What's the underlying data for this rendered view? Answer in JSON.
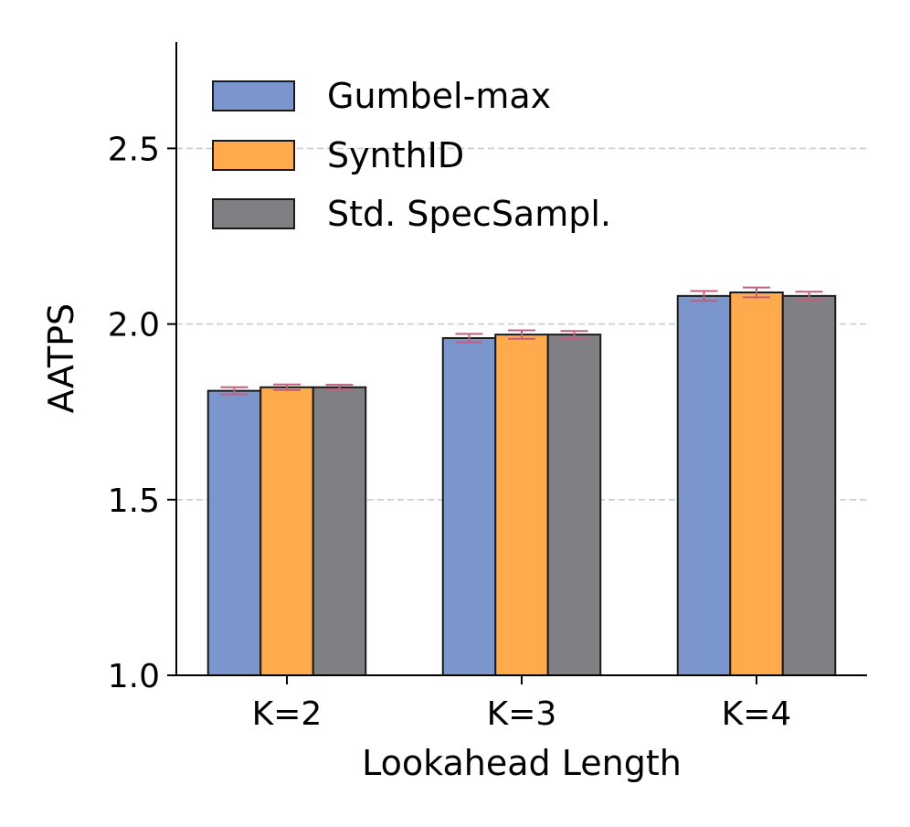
{
  "chart_data": {
    "type": "bar",
    "xlabel": "Lookahead Length",
    "ylabel": "AATPS",
    "categories": [
      "K=2",
      "K=3",
      "K=4"
    ],
    "ylim": [
      1.0,
      2.8
    ],
    "yticks": [
      "1.0",
      "1.5",
      "2.0",
      "2.5"
    ],
    "grid": "horizontal dashed",
    "legend_position": "top-left",
    "series": [
      {
        "name": "Gumbel-max",
        "color": "#7b96cc",
        "values": [
          1.81,
          1.96,
          2.08
        ],
        "errors": [
          0.01,
          0.012,
          0.014
        ]
      },
      {
        "name": "SynthID",
        "color": "#ffaa4d",
        "values": [
          1.82,
          1.97,
          2.09
        ],
        "errors": [
          0.008,
          0.012,
          0.014
        ]
      },
      {
        "name": "Std. SpecSampl.",
        "color": "#808084",
        "values": [
          1.82,
          1.97,
          2.08
        ],
        "errors": [
          0.007,
          0.01,
          0.012
        ]
      }
    ],
    "errorbar_color": "#c0607e"
  }
}
